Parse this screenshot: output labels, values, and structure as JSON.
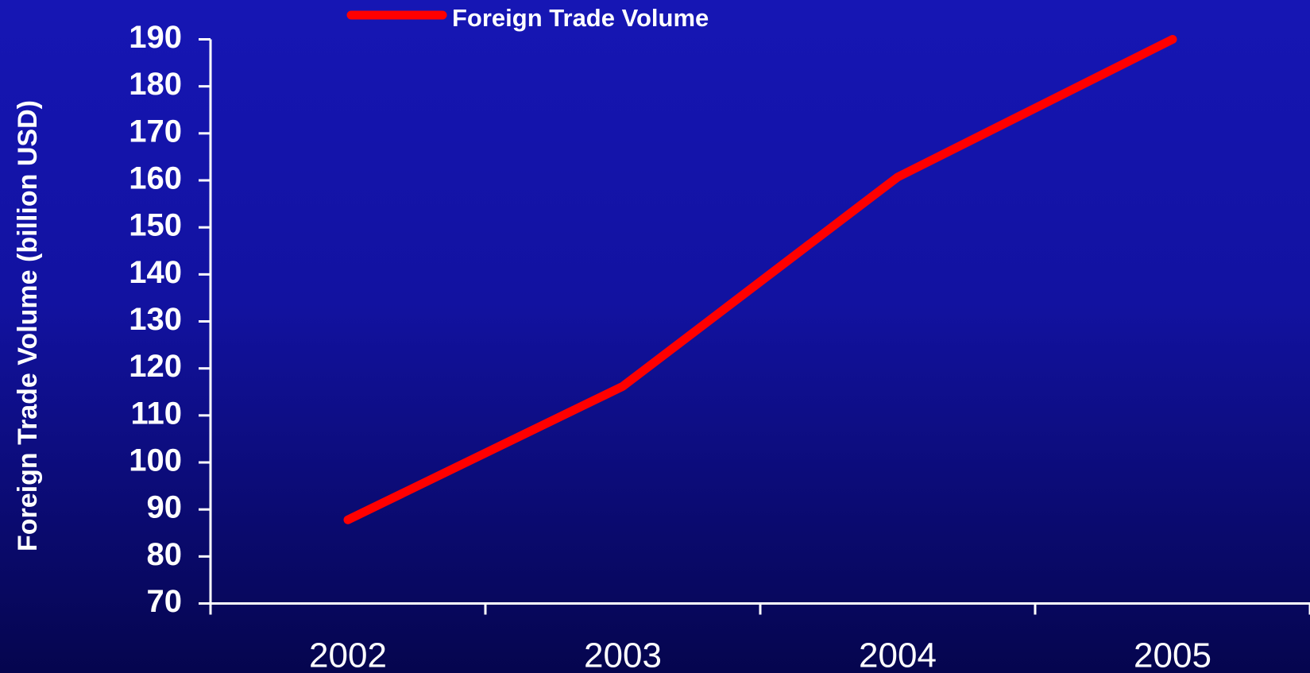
{
  "chart_data": {
    "type": "line",
    "y_label": "Foreign Trade Volume (billion USD)",
    "categories": [
      "2002",
      "2003",
      "2004",
      "2005"
    ],
    "series": [
      {
        "name": "Foreign Trade Volume",
        "color": "#ff0000",
        "values": [
          87.8,
          116.2,
          160.7,
          190
        ]
      }
    ],
    "ylim": [
      70,
      190
    ],
    "yticks": [
      70,
      80,
      90,
      100,
      110,
      120,
      130,
      140,
      150,
      160,
      170,
      180,
      190
    ],
    "legend": "top"
  }
}
